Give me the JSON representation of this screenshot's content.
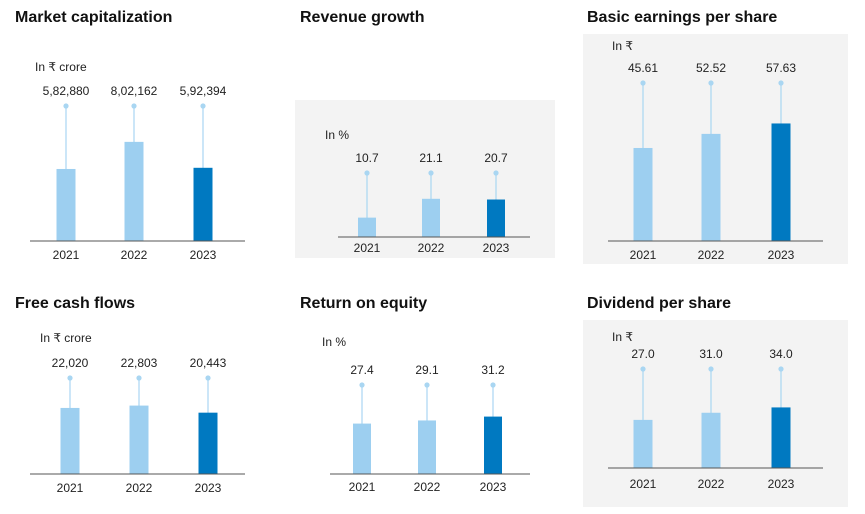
{
  "colors": {
    "past": "#9dcff0",
    "current": "#0079c1",
    "stem": "#a9d6f2",
    "axis": "#555555",
    "panel_bg": "#f3f3f3"
  },
  "chart_data": [
    {
      "type": "bar",
      "title": "Market capitalization",
      "unit": "In ₹ crore",
      "categories": [
        "2021",
        "2022",
        "2023"
      ],
      "values": [
        582880,
        802162,
        592394
      ],
      "value_labels": [
        "5,82,880",
        "8,02,162",
        "5,92,394"
      ],
      "ylim": [
        0,
        1400000
      ],
      "grid": false
    },
    {
      "type": "bar",
      "title": "Revenue growth",
      "unit": "In %",
      "categories": [
        "2021",
        "2022",
        "2023"
      ],
      "values": [
        10.7,
        21.1,
        20.7
      ],
      "value_labels": [
        "10.7",
        "21.1",
        "20.7"
      ],
      "ylim": [
        0,
        37
      ],
      "grid": false
    },
    {
      "type": "bar",
      "title": "Basic earnings per share",
      "unit": "In ₹",
      "categories": [
        "2021",
        "2022",
        "2023"
      ],
      "values": [
        45.61,
        52.52,
        57.63
      ],
      "value_labels": [
        "45.61",
        "52.52",
        "57.63"
      ],
      "ylim": [
        0,
        76
      ],
      "grid": false
    },
    {
      "type": "bar",
      "title": "Free cash flows",
      "unit": "In ₹ crore",
      "categories": [
        "2021",
        "2022",
        "2023"
      ],
      "values": [
        22020,
        22803,
        20443
      ],
      "value_labels": [
        "22,020",
        "22,803",
        "20,443"
      ],
      "ylim": [
        0,
        34000
      ],
      "grid": false
    },
    {
      "type": "bar",
      "title": "Return on equity",
      "unit": "In %",
      "categories": [
        "2021",
        "2022",
        "2023"
      ],
      "values": [
        27.4,
        29.1,
        31.2
      ],
      "value_labels": [
        "27.4",
        "29.1",
        "31.2"
      ],
      "ylim": [
        0,
        50
      ],
      "grid": false
    },
    {
      "type": "bar",
      "title": "Dividend per share",
      "unit": "In ₹",
      "categories": [
        "2021",
        "2022",
        "2023"
      ],
      "values": [
        27.0,
        31.0,
        34.0
      ],
      "value_labels": [
        "27.0",
        "31.0",
        "34.0"
      ],
      "ylim": [
        0,
        55
      ],
      "grid": false
    }
  ]
}
